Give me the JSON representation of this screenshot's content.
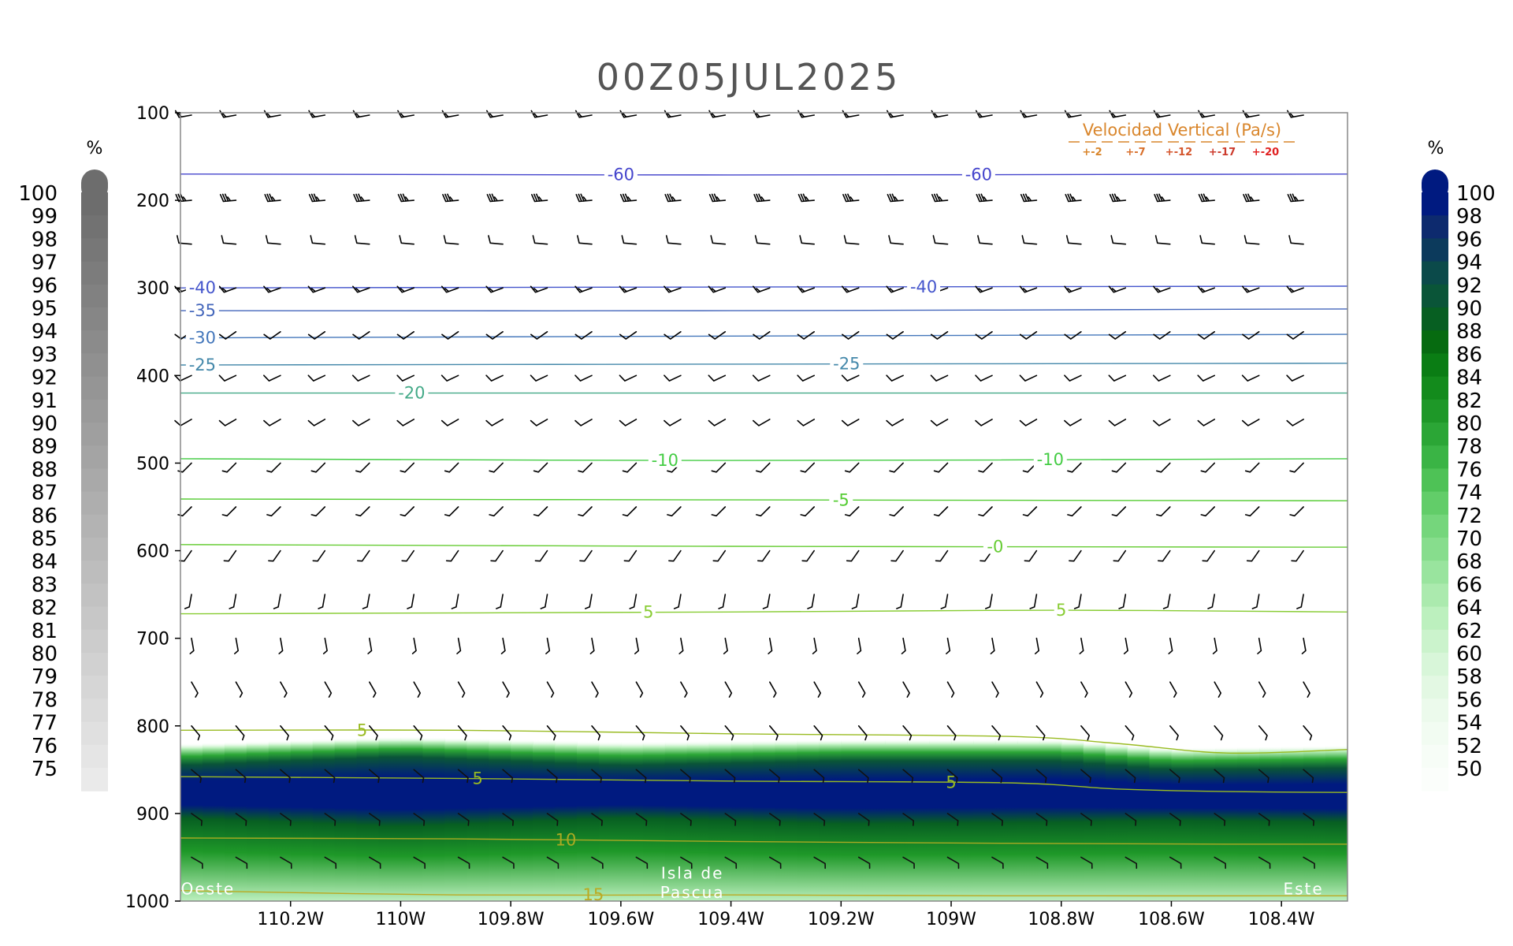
{
  "chart_data": {
    "type": "cross-section",
    "title": "00Z05JUL2025",
    "x_axis": {
      "range": [
        -110.4,
        -108.28
      ],
      "ticks": [
        {
          "value": -110.2,
          "label": "110.2W"
        },
        {
          "value": -110.0,
          "label": "110W"
        },
        {
          "value": -109.8,
          "label": "109.8W"
        },
        {
          "value": -109.6,
          "label": "109.6W"
        },
        {
          "value": -109.4,
          "label": "109.4W"
        },
        {
          "value": -109.2,
          "label": "109.2W"
        },
        {
          "value": -109.0,
          "label": "109W"
        },
        {
          "value": -108.8,
          "label": "108.8W"
        },
        {
          "value": -108.6,
          "label": "108.6W"
        },
        {
          "value": -108.4,
          "label": "108.4W"
        }
      ]
    },
    "y_axis": {
      "range": [
        1000,
        100
      ],
      "ticks": [
        100,
        200,
        300,
        400,
        500,
        600,
        700,
        800,
        900,
        1000
      ]
    },
    "temperature_contours": [
      {
        "value": -60,
        "color": "#4444cc",
        "points": [
          [
            -110.4,
            170
          ],
          [
            -109.4,
            171
          ],
          [
            -108.28,
            170
          ]
        ],
        "labels": [
          {
            "text": "-60",
            "x": -109.6
          },
          {
            "text": "-60",
            "x": -108.95
          }
        ]
      },
      {
        "value": -40,
        "color": "#4455cc",
        "points": [
          [
            -110.4,
            300
          ],
          [
            -109.4,
            299
          ],
          [
            -108.28,
            298
          ]
        ],
        "labels": [
          {
            "text": "-40",
            "x": -110.36
          },
          {
            "text": "-40",
            "x": -109.05
          }
        ]
      },
      {
        "value": -35,
        "color": "#4466bb",
        "points": [
          [
            -110.4,
            326
          ],
          [
            -109.4,
            326
          ],
          [
            -108.28,
            324
          ]
        ],
        "labels": [
          {
            "text": "-35",
            "x": -110.36
          }
        ]
      },
      {
        "value": -30,
        "color": "#4477bb",
        "points": [
          [
            -110.4,
            357
          ],
          [
            -109.4,
            355
          ],
          [
            -108.28,
            353
          ]
        ],
        "labels": [
          {
            "text": "-30",
            "x": -110.36
          }
        ]
      },
      {
        "value": -25,
        "color": "#4488aa",
        "points": [
          [
            -110.4,
            388
          ],
          [
            -109.4,
            387
          ],
          [
            -108.28,
            386
          ]
        ],
        "labels": [
          {
            "text": "-25",
            "x": -110.36
          },
          {
            "text": "-25",
            "x": -109.19
          }
        ]
      },
      {
        "value": -20,
        "color": "#44aa88",
        "points": [
          [
            -110.4,
            420
          ],
          [
            -109.4,
            420
          ],
          [
            -108.28,
            420
          ]
        ],
        "labels": [
          {
            "text": "-20",
            "x": -109.98
          }
        ]
      },
      {
        "value": -10,
        "color": "#44cc44",
        "points": [
          [
            -110.4,
            495
          ],
          [
            -109.4,
            497
          ],
          [
            -108.28,
            495
          ]
        ],
        "labels": [
          {
            "text": "-10",
            "x": -109.52
          },
          {
            "text": "-10",
            "x": -108.82
          }
        ]
      },
      {
        "value": -5,
        "color": "#55cc33",
        "points": [
          [
            -110.4,
            541
          ],
          [
            -109.4,
            542
          ],
          [
            -108.28,
            543
          ]
        ],
        "labels": [
          {
            "text": "-5",
            "x": -109.2
          }
        ]
      },
      {
        "value": 0,
        "color": "#66cc33",
        "points": [
          [
            -110.4,
            593
          ],
          [
            -109.4,
            595
          ],
          [
            -108.28,
            596
          ]
        ],
        "labels": [
          {
            "text": "-0",
            "x": -108.92
          }
        ]
      },
      {
        "value": 5,
        "color": "#88cc33",
        "points": [
          [
            -110.4,
            672
          ],
          [
            -109.4,
            670
          ],
          [
            -108.8,
            668
          ],
          [
            -108.28,
            670
          ]
        ],
        "labels": [
          {
            "text": "5",
            "x": -109.55
          },
          {
            "text": "5",
            "x": -108.8
          }
        ]
      },
      {
        "value": 5,
        "color": "#99bb22",
        "points": [
          [
            -110.4,
            805
          ],
          [
            -109.9,
            805
          ],
          [
            -109.4,
            809
          ],
          [
            -108.9,
            812
          ],
          [
            -108.7,
            820
          ],
          [
            -108.5,
            831
          ],
          [
            -108.28,
            827
          ]
        ],
        "labels": [
          {
            "text": "5",
            "x": -110.07
          }
        ]
      },
      {
        "value": 5,
        "color": "#99bb22",
        "points": [
          [
            -110.4,
            858
          ],
          [
            -109.9,
            860
          ],
          [
            -109.4,
            863
          ],
          [
            -108.9,
            865
          ],
          [
            -108.7,
            872
          ],
          [
            -108.5,
            875
          ],
          [
            -108.28,
            876
          ]
        ],
        "labels": [
          {
            "text": "5",
            "x": -109.86
          },
          {
            "text": "5",
            "x": -109.0
          }
        ]
      },
      {
        "value": 10,
        "color": "#aaaa22",
        "points": [
          [
            -110.4,
            928
          ],
          [
            -109.9,
            929
          ],
          [
            -109.4,
            932
          ],
          [
            -108.9,
            934
          ],
          [
            -108.5,
            935
          ],
          [
            -108.28,
            935
          ]
        ],
        "labels": [
          {
            "text": "10",
            "x": -109.7
          }
        ]
      },
      {
        "value": 15,
        "color": "#bbaa22",
        "points": [
          [
            -110.4,
            988
          ],
          [
            -109.9,
            993
          ],
          [
            -109.4,
            993
          ],
          [
            -108.9,
            994
          ],
          [
            -108.28,
            994
          ]
        ],
        "labels": [
          {
            "text": "15",
            "x": -109.65
          }
        ]
      }
    ],
    "humidity_layer": {
      "description": "relative humidity shading",
      "top_pressure": [
        [
          -110.4,
          820
        ],
        [
          -110.0,
          812
        ],
        [
          -109.6,
          818
        ],
        [
          -109.2,
          815
        ],
        [
          -108.8,
          815
        ],
        [
          -108.6,
          825
        ],
        [
          -108.28,
          822
        ]
      ],
      "core_top": [
        [
          -110.4,
          845
        ],
        [
          -110.0,
          835
        ],
        [
          -109.6,
          845
        ],
        [
          -109.2,
          840
        ],
        [
          -108.8,
          840
        ],
        [
          -108.6,
          850
        ],
        [
          -108.28,
          848
        ]
      ],
      "core_bottom": [
        [
          -110.4,
          905
        ],
        [
          -110.0,
          915
        ],
        [
          -109.6,
          905
        ],
        [
          -109.2,
          912
        ],
        [
          -108.8,
          910
        ],
        [
          -108.6,
          908
        ],
        [
          -108.28,
          910
        ]
      ],
      "bottom_value_percent": 58
    },
    "wind_barbs": {
      "columns_x_start": -110.38,
      "columns_dx": 0.0808,
      "columns_count": 26,
      "levels": [
        {
          "p": 100,
          "dir": 260,
          "speed": 15
        },
        {
          "p": 200,
          "dir": 265,
          "speed": 35
        },
        {
          "p": 250,
          "dir": 275,
          "speed": 10
        },
        {
          "p": 300,
          "dir": 250,
          "speed": 15
        },
        {
          "p": 350,
          "dir": 235,
          "speed": 10
        },
        {
          "p": 400,
          "dir": 245,
          "speed": 10
        },
        {
          "p": 450,
          "dir": 240,
          "speed": 10
        },
        {
          "p": 500,
          "dir": 225,
          "speed": 5
        },
        {
          "p": 550,
          "dir": 225,
          "speed": 5
        },
        {
          "p": 600,
          "dir": 215,
          "speed": 5
        },
        {
          "p": 650,
          "dir": 190,
          "speed": 5
        },
        {
          "p": 700,
          "dir": 170,
          "speed": 5
        },
        {
          "p": 750,
          "dir": 150,
          "speed": 5
        },
        {
          "p": 800,
          "dir": 140,
          "speed": 5
        },
        {
          "p": 850,
          "dir": 130,
          "speed": 5
        },
        {
          "p": 900,
          "dir": 125,
          "speed": 5
        },
        {
          "p": 950,
          "dir": 120,
          "speed": 5
        }
      ]
    },
    "legend": {
      "title": "Velocidad Vertical  (Pa/s)",
      "items": [
        "+-2",
        "+-7",
        "+-12",
        "+-17",
        "+-20"
      ],
      "colors": [
        "#d9862c",
        "#d9702c",
        "#d4552c",
        "#cc3a2c",
        "#e02020"
      ]
    },
    "left_colorbar": {
      "unit": "%",
      "labels": [
        "100",
        "99",
        "98",
        "97",
        "96",
        "95",
        "94",
        "93",
        "92",
        "91",
        "90",
        "89",
        "88",
        "87",
        "86",
        "85",
        "84",
        "83",
        "82",
        "81",
        "80",
        "79",
        "78",
        "77",
        "76",
        "75"
      ],
      "colors": [
        "#6d6d6d",
        "#727272",
        "#777777",
        "#7c7c7c",
        "#818181",
        "#868686",
        "#8b8b8b",
        "#909090",
        "#959595",
        "#9a9a9a",
        "#9f9f9f",
        "#a4a4a4",
        "#a9a9a9",
        "#aeaeae",
        "#b3b3b3",
        "#b8b8b8",
        "#bdbdbd",
        "#c2c2c2",
        "#c7c7c7",
        "#cccccc",
        "#d1d1d1",
        "#d6d6d6",
        "#dbdbdb",
        "#e0e0e0",
        "#e5e5e5",
        "#eaeaea"
      ]
    },
    "right_colorbar": {
      "unit": "%",
      "labels": [
        "100",
        "98",
        "96",
        "94",
        "92",
        "90",
        "88",
        "86",
        "84",
        "82",
        "80",
        "78",
        "76",
        "74",
        "72",
        "70",
        "68",
        "66",
        "64",
        "62",
        "60",
        "58",
        "56",
        "54",
        "52",
        "50"
      ],
      "colors": [
        "#001a80",
        "#0d2a6e",
        "#0c3a5c",
        "#0b4a4a",
        "#0a5538",
        "#075f22",
        "#066b10",
        "#0a7d14",
        "#138b1c",
        "#1e9828",
        "#2ba636",
        "#3ab445",
        "#4ec256",
        "#62cd69",
        "#75d67c",
        "#87dd8d",
        "#99e49e",
        "#abeaae",
        "#bcf0be",
        "#cbf3cc",
        "#d8f6d9",
        "#e3f8e3",
        "#ecfaec",
        "#f2fcf2",
        "#f7fdf7",
        "#fbfefb"
      ]
    },
    "annotations": [
      {
        "text": "Oeste",
        "x": -110.35,
        "p": 986
      },
      {
        "text": "Isla de",
        "x": -109.47,
        "p": 968
      },
      {
        "text": "Pascua",
        "x": -109.47,
        "p": 990
      },
      {
        "text": "Este",
        "x": -108.36,
        "p": 986
      }
    ]
  }
}
